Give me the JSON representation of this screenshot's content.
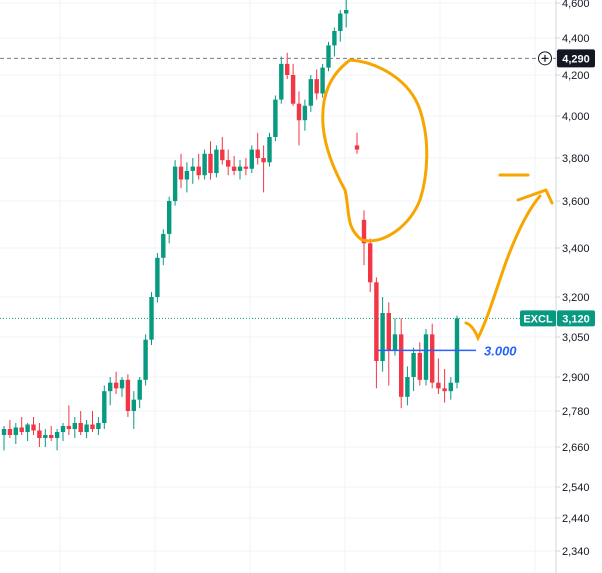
{
  "chart_data": {
    "type": "candlestick",
    "y_axis": {
      "ticks": [
        {
          "value": 4600,
          "label": "4,600"
        },
        {
          "value": 4400,
          "label": "4,400"
        },
        {
          "value": 4200,
          "label": "4,200"
        },
        {
          "value": 4000,
          "label": "4,000"
        },
        {
          "value": 3800,
          "label": "3,800"
        },
        {
          "value": 3600,
          "label": "3,600"
        },
        {
          "value": 3400,
          "label": "3,400"
        },
        {
          "value": 3200,
          "label": "3,200"
        },
        {
          "value": 3050,
          "label": "3,050"
        },
        {
          "value": 2900,
          "label": "2,900"
        },
        {
          "value": 2780,
          "label": "2,780"
        },
        {
          "value": 2660,
          "label": "2,660"
        },
        {
          "value": 2540,
          "label": "2,540"
        },
        {
          "value": 2440,
          "label": "2,440"
        },
        {
          "value": 2340,
          "label": "2,340"
        }
      ]
    },
    "colors": {
      "up": "#089981",
      "down": "#f23645",
      "grid": "#f0f3fa",
      "axis": "#d1d4dc",
      "annotation": "#f7a600",
      "level": "#2962ff",
      "crosshair_badge": "#131722",
      "price_badge": "#089981"
    },
    "crosshair": {
      "value": 4290,
      "label": "4,290"
    },
    "last_price": {
      "value": 3120,
      "symbol": "EXCL",
      "label": "3,120"
    },
    "level_line": {
      "value": 3000,
      "label": "3.000"
    },
    "candles": [
      [
        2700,
        2730,
        2650,
        2720
      ],
      [
        2720,
        2750,
        2690,
        2700
      ],
      [
        2700,
        2740,
        2670,
        2725
      ],
      [
        2725,
        2760,
        2700,
        2710
      ],
      [
        2710,
        2740,
        2680,
        2735
      ],
      [
        2735,
        2760,
        2700,
        2715
      ],
      [
        2715,
        2740,
        2660,
        2690
      ],
      [
        2690,
        2720,
        2660,
        2700
      ],
      [
        2700,
        2730,
        2680,
        2690
      ],
      [
        2690,
        2720,
        2650,
        2710
      ],
      [
        2710,
        2740,
        2680,
        2730
      ],
      [
        2730,
        2800,
        2700,
        2720
      ],
      [
        2720,
        2760,
        2690,
        2740
      ],
      [
        2740,
        2780,
        2700,
        2710
      ],
      [
        2710,
        2750,
        2690,
        2735
      ],
      [
        2735,
        2780,
        2710,
        2720
      ],
      [
        2720,
        2760,
        2700,
        2740
      ],
      [
        2740,
        2870,
        2720,
        2850
      ],
      [
        2850,
        2900,
        2800,
        2880
      ],
      [
        2880,
        2920,
        2840,
        2860
      ],
      [
        2860,
        2900,
        2830,
        2890
      ],
      [
        2890,
        2910,
        2760,
        2780
      ],
      [
        2780,
        2850,
        2720,
        2820
      ],
      [
        2820,
        2900,
        2790,
        2890
      ],
      [
        2890,
        3060,
        2870,
        3040
      ],
      [
        3040,
        3220,
        3020,
        3200
      ],
      [
        3200,
        3380,
        3180,
        3360
      ],
      [
        3360,
        3480,
        3330,
        3460
      ],
      [
        3460,
        3620,
        3420,
        3600
      ],
      [
        3600,
        3790,
        3580,
        3760
      ],
      [
        3760,
        3820,
        3660,
        3700
      ],
      [
        3700,
        3780,
        3640,
        3740
      ],
      [
        3740,
        3800,
        3680,
        3760
      ],
      [
        3760,
        3820,
        3700,
        3720
      ],
      [
        3720,
        3840,
        3700,
        3820
      ],
      [
        3820,
        3880,
        3700,
        3730
      ],
      [
        3730,
        3860,
        3710,
        3840
      ],
      [
        3840,
        3900,
        3770,
        3790
      ],
      [
        3790,
        3840,
        3720,
        3760
      ],
      [
        3760,
        3810,
        3720,
        3740
      ],
      [
        3740,
        3790,
        3700,
        3760
      ],
      [
        3760,
        3800,
        3720,
        3750
      ],
      [
        3750,
        3860,
        3730,
        3840
      ],
      [
        3840,
        3920,
        3770,
        3800
      ],
      [
        3800,
        3860,
        3640,
        3780
      ],
      [
        3780,
        3920,
        3760,
        3900
      ],
      [
        3900,
        4100,
        3880,
        4080
      ],
      [
        4080,
        4300,
        4060,
        4260
      ],
      [
        4260,
        4320,
        4180,
        4200
      ],
      [
        4200,
        4260,
        4050,
        4060
      ],
      [
        4060,
        4120,
        3860,
        3980
      ],
      [
        3980,
        4080,
        3930,
        4050
      ],
      [
        4050,
        4200,
        4020,
        4180
      ],
      [
        4180,
        4230,
        4080,
        4110
      ],
      [
        4110,
        4260,
        4090,
        4240
      ],
      [
        4240,
        4380,
        4220,
        4360
      ],
      [
        4360,
        4460,
        4300,
        4440
      ],
      [
        4440,
        4560,
        4380,
        4540
      ],
      [
        4540,
        4620,
        4460,
        4560
      ],
      [
        3860,
        3920,
        3820,
        3840
      ],
      [
        3520,
        3560,
        3330,
        3420
      ],
      [
        3420,
        3440,
        3220,
        3260
      ],
      [
        3260,
        3280,
        2860,
        2960
      ],
      [
        2960,
        3200,
        2920,
        3140
      ],
      [
        3140,
        3180,
        2870,
        3000
      ],
      [
        3000,
        3120,
        2980,
        3060
      ],
      [
        3060,
        3120,
        2790,
        2830
      ],
      [
        2830,
        2940,
        2800,
        2900
      ],
      [
        2900,
        3010,
        2850,
        2990
      ],
      [
        2990,
        3030,
        2870,
        2890
      ],
      [
        2890,
        3080,
        2870,
        3060
      ],
      [
        3060,
        3100,
        2860,
        2880
      ],
      [
        2880,
        2970,
        2840,
        2860
      ],
      [
        2860,
        2930,
        2810,
        2850
      ],
      [
        2850,
        2900,
        2820,
        2880
      ],
      [
        2880,
        3130,
        2860,
        3120
      ]
    ]
  }
}
